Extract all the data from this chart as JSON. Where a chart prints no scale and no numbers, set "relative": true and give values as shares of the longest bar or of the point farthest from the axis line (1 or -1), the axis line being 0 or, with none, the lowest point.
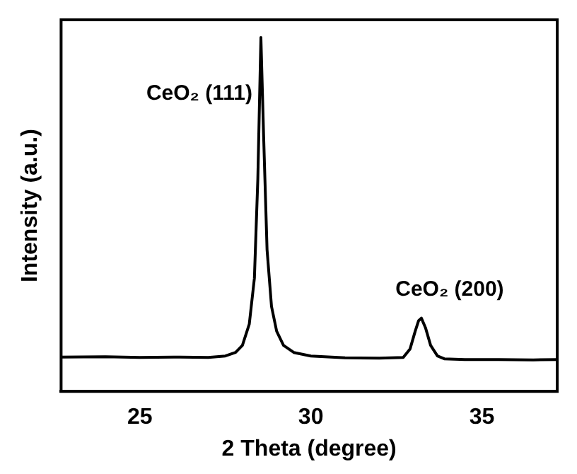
{
  "chart_data": {
    "type": "line",
    "relative": true,
    "xlabel": "2 Theta (degree)",
    "ylabel": "Intensity (a.u.)",
    "xlim": [
      22.7,
      37.2
    ],
    "xticks": [
      25,
      30,
      35
    ],
    "grid": false,
    "legend": false,
    "marker": "none",
    "line_style": "solid",
    "series": [
      {
        "color": "#000000",
        "x": [
          22.7,
          24,
          25,
          26,
          27,
          27.5,
          27.8,
          28.0,
          28.2,
          28.35,
          28.45,
          28.54,
          28.62,
          28.72,
          28.85,
          29.0,
          29.2,
          29.5,
          30,
          31,
          32,
          32.7,
          32.9,
          33.05,
          33.15,
          33.23,
          33.35,
          33.5,
          33.7,
          33.9,
          34.5,
          35.5,
          36.5,
          37.2
        ],
        "values": [
          0.097,
          0.098,
          0.096,
          0.097,
          0.096,
          0.1,
          0.11,
          0.13,
          0.19,
          0.32,
          0.6,
          1.0,
          0.72,
          0.4,
          0.24,
          0.17,
          0.13,
          0.11,
          0.1,
          0.095,
          0.094,
          0.096,
          0.12,
          0.17,
          0.2,
          0.207,
          0.18,
          0.13,
          0.1,
          0.092,
          0.09,
          0.09,
          0.089,
          0.09
        ]
      }
    ],
    "annotations": [
      {
        "text": "CeO₂ (111)",
        "x": 28.54,
        "y": 0.84
      },
      {
        "text": "CeO₂ (200)",
        "x": 33.23,
        "y": 0.207
      }
    ]
  }
}
